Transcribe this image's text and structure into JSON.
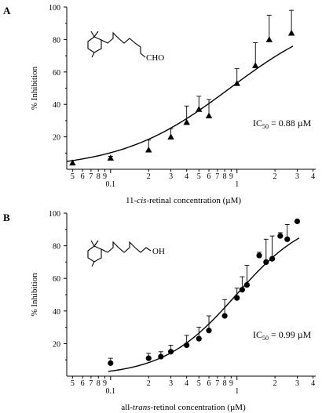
{
  "chart_data": [
    {
      "type": "scatter",
      "panel_label": "A",
      "title": "",
      "xlabel_parts": [
        "11-",
        "cis",
        "-retinal concentration  (µM)"
      ],
      "ylabel": "% Inhibition",
      "xscale": "log",
      "xlim": [
        0.045,
        4.2
      ],
      "ylim": [
        0,
        100
      ],
      "yticks": [
        20,
        40,
        60,
        80,
        100
      ],
      "xticks": [
        {
          "v": 0.05,
          "label": "5"
        },
        {
          "v": 0.06,
          "label": "6"
        },
        {
          "v": 0.07,
          "label": "7"
        },
        {
          "v": 0.08,
          "label": "8"
        },
        {
          "v": 0.09,
          "label": "9"
        },
        {
          "v": 0.1,
          "label": "0.1"
        },
        {
          "v": 0.2,
          "label": "2"
        },
        {
          "v": 0.3,
          "label": "3"
        },
        {
          "v": 0.4,
          "label": "4"
        },
        {
          "v": 0.5,
          "label": "5"
        },
        {
          "v": 0.6,
          "label": "6"
        },
        {
          "v": 0.7,
          "label": "7"
        },
        {
          "v": 0.8,
          "label": "8"
        },
        {
          "v": 0.9,
          "label": "9"
        },
        {
          "v": 1,
          "label": "1"
        },
        {
          "v": 2,
          "label": "2"
        },
        {
          "v": 3,
          "label": "3"
        },
        {
          "v": 4,
          "label": "4"
        }
      ],
      "marker": "triangle",
      "points": [
        {
          "x": 0.05,
          "y": 4,
          "err": 0
        },
        {
          "x": 0.1,
          "y": 7,
          "err": 1
        },
        {
          "x": 0.2,
          "y": 12,
          "err": 6
        },
        {
          "x": 0.3,
          "y": 20,
          "err": 5
        },
        {
          "x": 0.4,
          "y": 29,
          "err": 10
        },
        {
          "x": 0.5,
          "y": 37,
          "err": 8
        },
        {
          "x": 0.6,
          "y": 33,
          "err": 10
        },
        {
          "x": 1.0,
          "y": 53,
          "err": 9
        },
        {
          "x": 1.4,
          "y": 64,
          "err": 14
        },
        {
          "x": 1.8,
          "y": 80,
          "err": 15
        },
        {
          "x": 2.7,
          "y": 84,
          "err": 14
        }
      ],
      "fit": {
        "ic50": 0.88,
        "hill": 1.0
      },
      "ic50_text": {
        "pre": "IC",
        "sub": "50",
        "post": " = 0.88 µM"
      },
      "molecule_label": "CHO"
    },
    {
      "type": "scatter",
      "panel_label": "B",
      "title": "",
      "xlabel_parts": [
        "all-",
        "trans",
        "-retinol concentration  (µM)"
      ],
      "ylabel": "% Inhibition",
      "xscale": "log",
      "xlim": [
        0.045,
        4.2
      ],
      "ylim": [
        0,
        100
      ],
      "yticks": [
        20,
        40,
        60,
        80,
        100
      ],
      "xticks": [
        {
          "v": 0.05,
          "label": "5"
        },
        {
          "v": 0.06,
          "label": "6"
        },
        {
          "v": 0.07,
          "label": "7"
        },
        {
          "v": 0.08,
          "label": "8"
        },
        {
          "v": 0.09,
          "label": "9"
        },
        {
          "v": 0.1,
          "label": "0.1"
        },
        {
          "v": 0.2,
          "label": "2"
        },
        {
          "v": 0.3,
          "label": "3"
        },
        {
          "v": 0.4,
          "label": "4"
        },
        {
          "v": 0.5,
          "label": "5"
        },
        {
          "v": 0.6,
          "label": "6"
        },
        {
          "v": 0.7,
          "label": "7"
        },
        {
          "v": 0.8,
          "label": "8"
        },
        {
          "v": 0.9,
          "label": "9"
        },
        {
          "v": 1,
          "label": "1"
        },
        {
          "v": 2,
          "label": "2"
        },
        {
          "v": 3,
          "label": "3"
        },
        {
          "v": 4,
          "label": "4"
        }
      ],
      "marker": "circle",
      "points": [
        {
          "x": 0.1,
          "y": 8,
          "err": 3
        },
        {
          "x": 0.2,
          "y": 11,
          "err": 3
        },
        {
          "x": 0.25,
          "y": 12,
          "err": 3
        },
        {
          "x": 0.3,
          "y": 15,
          "err": 4
        },
        {
          "x": 0.4,
          "y": 19,
          "err": 6
        },
        {
          "x": 0.5,
          "y": 23,
          "err": 7
        },
        {
          "x": 0.6,
          "y": 28,
          "err": 9
        },
        {
          "x": 0.8,
          "y": 37,
          "err": 10
        },
        {
          "x": 1.0,
          "y": 48,
          "err": 6
        },
        {
          "x": 1.1,
          "y": 53,
          "err": 8
        },
        {
          "x": 1.2,
          "y": 56,
          "err": 12
        },
        {
          "x": 1.5,
          "y": 74,
          "err": 2
        },
        {
          "x": 1.7,
          "y": 70,
          "err": 14
        },
        {
          "x": 1.9,
          "y": 72,
          "err": 14
        },
        {
          "x": 2.2,
          "y": 86,
          "err": 2
        },
        {
          "x": 2.5,
          "y": 84,
          "err": 9
        },
        {
          "x": 3.0,
          "y": 95,
          "err": 0
        }
      ],
      "fit": {
        "ic50": 0.99,
        "hill": 1.5
      },
      "ic50_text": {
        "pre": "IC",
        "sub": "50",
        "post": " = 0.99 µM"
      },
      "molecule_label": "OH"
    }
  ]
}
